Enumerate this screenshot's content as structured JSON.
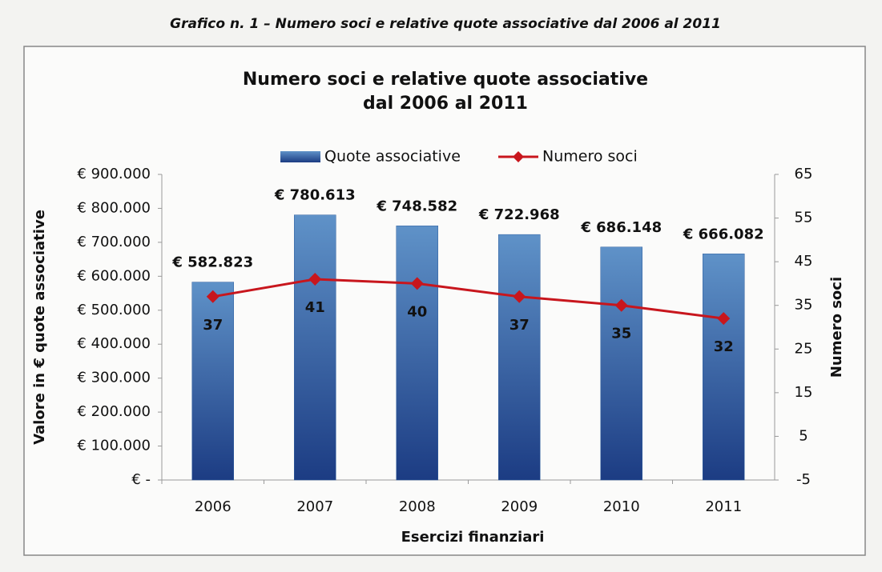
{
  "caption": "Grafico n. 1 – Numero soci e relative quote associative dal 2006 al 2011",
  "chart_data": {
    "type": "bar",
    "title": [
      "Numero soci e relative quote associative",
      "dal 2006 al 2011"
    ],
    "categories": [
      "2006",
      "2007",
      "2008",
      "2009",
      "2010",
      "2011"
    ],
    "series": [
      {
        "name": "Quote associative",
        "type": "bar",
        "color": "#2f5f9f",
        "values": [
          582823,
          780613,
          748582,
          722968,
          686148,
          666082
        ],
        "value_labels": [
          "€ 582.823",
          "€ 780.613",
          "€ 748.582",
          "€ 722.968",
          "€ 686.148",
          "€ 666.082"
        ]
      },
      {
        "name": "Numero soci",
        "type": "line",
        "color": "#c8161d",
        "axis": "y2",
        "values": [
          37,
          41,
          40,
          37,
          35,
          32
        ]
      }
    ],
    "ylim": [
      0,
      900000
    ],
    "yticks": [
      {
        "value": 0,
        "label": "€ -"
      },
      {
        "value": 100000,
        "label": "€ 100.000"
      },
      {
        "value": 200000,
        "label": "€ 200.000"
      },
      {
        "value": 300000,
        "label": "€ 300.000"
      },
      {
        "value": 400000,
        "label": "€ 400.000"
      },
      {
        "value": 500000,
        "label": "€ 500.000"
      },
      {
        "value": 600000,
        "label": "€ 600.000"
      },
      {
        "value": 700000,
        "label": "€ 700.000"
      },
      {
        "value": 800000,
        "label": "€ 800.000"
      },
      {
        "value": 900000,
        "label": "€ 900.000"
      }
    ],
    "y2lim": [
      -5,
      65
    ],
    "y2ticks": [
      -5,
      5,
      15,
      25,
      35,
      45,
      55,
      65
    ],
    "xlabel": "Esercizi finanziari",
    "ylabel": "Valore in € quote associative",
    "y2label": "Numero soci",
    "legend": "top",
    "grid": false
  }
}
